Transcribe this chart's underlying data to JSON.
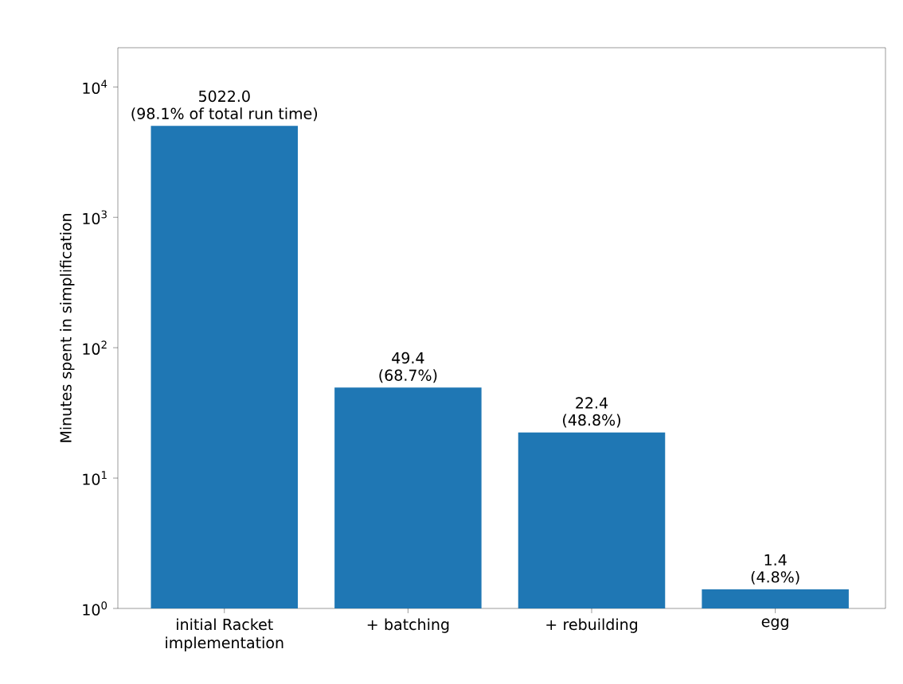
{
  "chart_data": {
    "type": "bar",
    "ylabel": "Minutes spent in simplification",
    "categories": [
      "initial Racket implementation",
      "+ batching",
      "+ rebuilding",
      "egg"
    ],
    "values": [
      5022.0,
      49.4,
      22.4,
      1.4
    ],
    "value_labels": [
      "5022.0",
      "49.4",
      "22.4",
      "1.4"
    ],
    "color": "#1f77b4",
    "log": true,
    "ylim": [
      1,
      20000
    ],
    "yticks": [
      {
        "value": 1,
        "label": "10$^{0}$"
      },
      {
        "value": 10,
        "label": "10$^{1}$"
      },
      {
        "value": 100,
        "label": "10$^{2}$"
      },
      {
        "value": 1000,
        "label": "10$^{3}$"
      },
      {
        "value": 10000,
        "label": "10$^{4}$"
      }
    ],
    "annotations": [
      {
        "text": "(98.1% of total run time)",
        "x": "initial Racket implementation",
        "y": 5022.0
      },
      {
        "text": "(68.7%)",
        "x": "+ batching",
        "y": 49.4
      },
      {
        "text": "(48.8%)",
        "x": "+ rebuilding",
        "y": 22.4
      },
      {
        "text": "(4.8%)",
        "x": "egg",
        "y": 1.4
      }
    ],
    "grid": false
  }
}
